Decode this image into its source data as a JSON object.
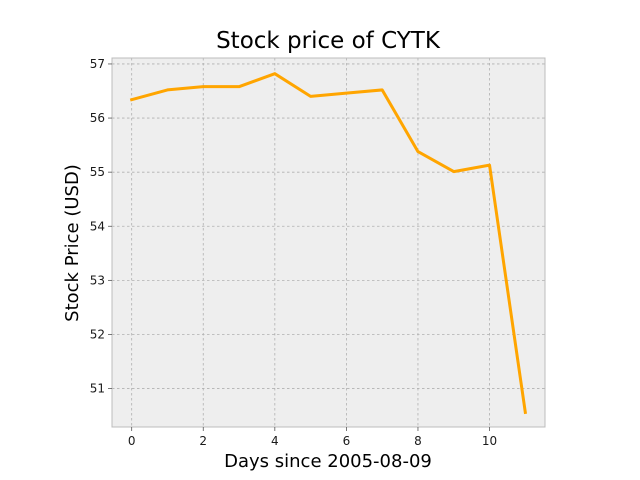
{
  "chart_data": {
    "type": "line",
    "title": "Stock price of CYTK",
    "xlabel": "Days since 2005-08-09",
    "ylabel": "Stock Price (USD)",
    "x": [
      0,
      1,
      2,
      3,
      4,
      5,
      6,
      7,
      8,
      9,
      10,
      11
    ],
    "series": [
      {
        "values": [
          56.34,
          56.52,
          56.58,
          56.58,
          56.82,
          56.4,
          56.46,
          56.52,
          55.38,
          55.01,
          55.13,
          50.56
        ],
        "color": "#ffa500"
      }
    ],
    "xlim": [
      -0.55,
      11.55
    ],
    "ylim": [
      50.29,
      57.11
    ],
    "xticks": [
      0,
      2,
      4,
      6,
      8,
      10
    ],
    "yticks": [
      51,
      52,
      53,
      54,
      55,
      56,
      57
    ],
    "grid": true,
    "legend": "none",
    "background": "#eeeeee",
    "frame_color": "#bcbcbc"
  }
}
